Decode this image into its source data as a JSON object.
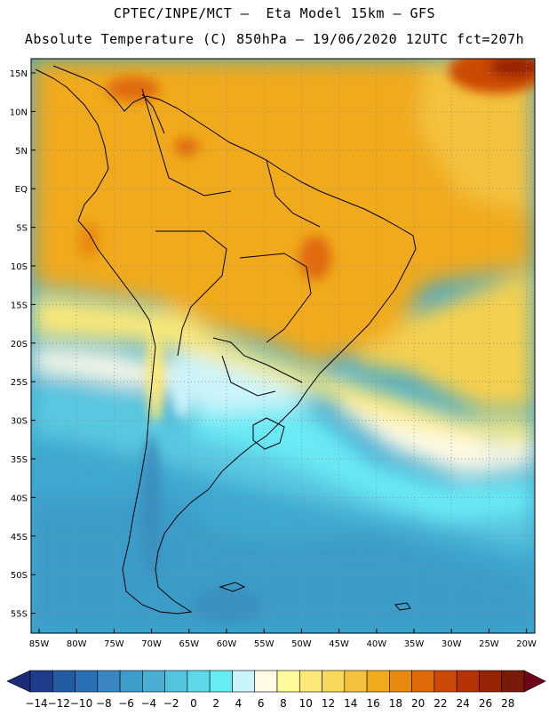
{
  "header": {
    "line1": "CPTEC/INPE/MCT –  Eta Model 15km – GFS",
    "line2": "Absolute Temperature (C) 850hPa – 19/06/2020 12UTC fct=207h"
  },
  "map": {
    "lat_ticks": [
      "15N",
      "10N",
      "5N",
      "EQ",
      "5S",
      "10S",
      "15S",
      "20S",
      "25S",
      "30S",
      "35S",
      "40S",
      "45S",
      "50S",
      "55S"
    ],
    "lon_ticks": [
      "85W",
      "80W",
      "75W",
      "70W",
      "65W",
      "60W",
      "55W",
      "50W",
      "45W",
      "40W",
      "35W",
      "30W",
      "25W",
      "20W"
    ]
  },
  "colorbar": {
    "labels": [
      "-14",
      "-12",
      "-10",
      "-8",
      "-6",
      "-4",
      "-2",
      "0",
      "2",
      "4",
      "6",
      "8",
      "10",
      "12",
      "14",
      "16",
      "18",
      "20",
      "22",
      "24",
      "26",
      "28"
    ],
    "colors": [
      "#1e3c8c",
      "#245aa0",
      "#2a70b4",
      "#3a86c2",
      "#3e9cc8",
      "#48aed2",
      "#52c4de",
      "#5ed8e8",
      "#68ecf4",
      "#c8f4fa",
      "#fffae6",
      "#fffa9c",
      "#fbe878",
      "#f8d85a",
      "#f4c23e",
      "#f0aa1e",
      "#e88a10",
      "#e06a08",
      "#cc4a06",
      "#b43204",
      "#962404",
      "#781a08"
    ]
  }
}
